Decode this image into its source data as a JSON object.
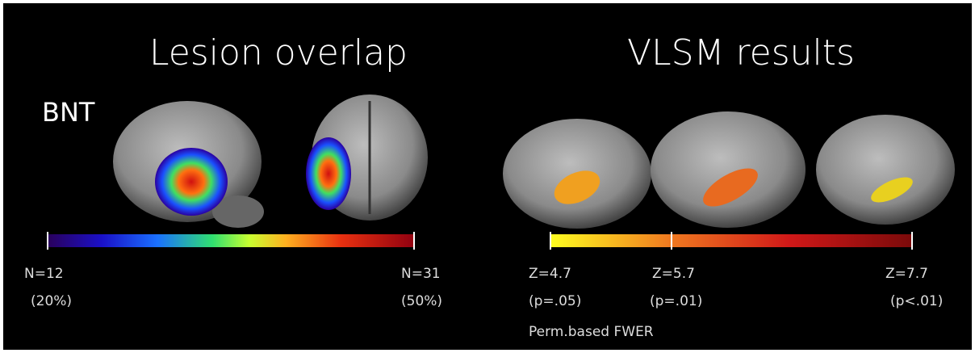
{
  "titles": {
    "left": "Lesion overlap",
    "right": "VLSM results"
  },
  "test_label": "BNT",
  "overlap_scale": {
    "min": {
      "n": "N=12",
      "pct": "(20%)"
    },
    "max": {
      "n": "N=31",
      "pct": "(50%)"
    }
  },
  "vlsm_scale": {
    "ticks": [
      {
        "z": "Z=4.7",
        "p": "(p=.05)"
      },
      {
        "z": "Z=5.7",
        "p": "(p=.01)"
      },
      {
        "z": "Z=7.7",
        "p": "(p<.01)"
      }
    ],
    "note": "Perm.based FWER"
  }
}
